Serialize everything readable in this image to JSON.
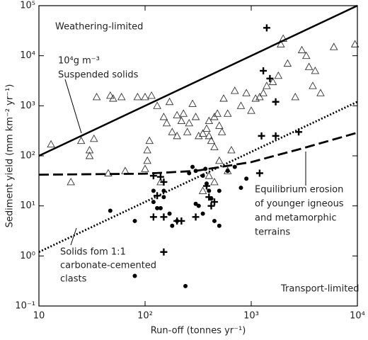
{
  "chart_data": {
    "type": "scatter",
    "xlabel": "Run-off (tonnes yr⁻¹)",
    "ylabel": "Sediment yield (mm km⁻² yr⁻¹)",
    "xscale": "log",
    "yscale": "log",
    "xlim": [
      10,
      10000
    ],
    "ylim": [
      0.1,
      100000
    ],
    "xticks": [
      10,
      {
        "value": 100,
        "label": "10²"
      },
      {
        "value": 1000,
        "label": "10³"
      },
      {
        "value": 10000,
        "label": "10⁴"
      }
    ],
    "yticks": [
      {
        "value": 0.1,
        "label": "10⁻¹"
      },
      {
        "value": 1,
        "label": "10⁰"
      },
      {
        "value": 10,
        "label": "10¹"
      },
      {
        "value": 100,
        "label": "10²"
      },
      {
        "value": 1000,
        "label": "10³"
      },
      {
        "value": 10000,
        "label": "10⁴"
      },
      {
        "value": 100000,
        "label": "10⁵"
      }
    ],
    "annotations": [
      "Weathering-limited",
      "10⁴g m⁻³",
      "Suspended solids",
      "Equilibrium erosion",
      "of younger igneous",
      "and metamorphic",
      "terrains",
      "Solids fom 1:1",
      "carbonate-cemented",
      "clasts",
      "Transport-limited"
    ],
    "series": [
      {
        "marker": "triangle",
        "color": "#333333",
        "x": [
          13,
          20,
          25,
          30,
          33,
          30,
          35,
          45,
          47,
          50,
          60,
          65,
          85,
          100,
          105,
          105,
          110,
          115,
          130,
          150,
          160,
          170,
          180,
          200,
          200,
          220,
          230,
          250,
          260,
          280,
          300,
          320,
          350,
          380,
          400,
          400,
          420,
          450,
          450,
          480,
          500,
          530,
          550,
          600,
          650,
          700,
          800,
          900,
          1000,
          1100,
          1200,
          1300,
          1400,
          1600,
          1800,
          2000,
          1900,
          2200,
          2600,
          3000,
          3300,
          3500,
          3800,
          4000,
          4500,
          6000,
          9500,
          400,
          450,
          350,
          500,
          140,
          100,
          600
        ],
        "values": [
          170,
          30,
          200,
          130,
          220,
          100,
          1500,
          45,
          1600,
          1400,
          1500,
          50,
          1500,
          1500,
          130,
          80,
          200,
          1600,
          1000,
          600,
          450,
          1200,
          300,
          250,
          650,
          500,
          700,
          300,
          450,
          1100,
          600,
          250,
          280,
          350,
          500,
          250,
          200,
          150,
          600,
          700,
          400,
          300,
          1400,
          700,
          130,
          2000,
          1000,
          1800,
          800,
          1400,
          1500,
          1800,
          2500,
          3000,
          4000,
          22000,
          17000,
          7000,
          1500,
          13000,
          10000,
          6000,
          2500,
          5000,
          1800,
          15000,
          17000,
          40,
          30,
          20,
          80,
          30,
          55,
          50
        ]
      },
      {
        "marker": "plus",
        "color": "#000000",
        "x": [
          1400,
          1300,
          1500,
          1700,
          1250,
          1700,
          2800,
          1200,
          120,
          140,
          150,
          380,
          400,
          450,
          420,
          120,
          150,
          200,
          220,
          300,
          150,
          130
        ],
        "values": [
          36000,
          5000,
          3500,
          1200,
          250,
          250,
          300,
          45,
          40,
          38,
          30,
          25,
          15,
          12,
          10,
          6,
          6,
          5,
          5,
          6,
          1.2,
          16
        ]
      },
      {
        "marker": "dot",
        "color": "#000000",
        "x": [
          47,
          80,
          80,
          120,
          120,
          130,
          140,
          150,
          150,
          170,
          180,
          200,
          240,
          280,
          300,
          320,
          350,
          370,
          380,
          400,
          420,
          450,
          500,
          600,
          700,
          800,
          900,
          260,
          500,
          300,
          350
        ],
        "values": [
          8,
          5,
          0.4,
          20,
          12,
          9,
          9,
          20,
          15,
          7,
          4,
          5,
          0.25,
          60,
          50,
          10,
          7,
          55,
          28,
          20,
          14,
          5,
          4,
          50,
          60,
          23,
          35,
          45,
          20,
          11,
          40
        ]
      },
      {
        "marker": "line",
        "style": "solid",
        "color": "#000000",
        "x": [
          10,
          10000
        ],
        "values": [
          100,
          100000
        ]
      },
      {
        "marker": "line",
        "style": "dotted",
        "color": "#000000",
        "x": [
          10,
          10000
        ],
        "values": [
          1.2,
          1200
        ]
      },
      {
        "marker": "line",
        "style": "dashed",
        "color": "#000000",
        "x": [
          10,
          100,
          300,
          1000,
          3000,
          10000
        ],
        "values": [
          42,
          44,
          50,
          75,
          140,
          290
        ]
      }
    ]
  }
}
